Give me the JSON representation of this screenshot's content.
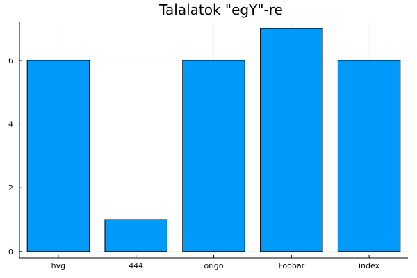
{
  "chart_data": {
    "type": "bar",
    "title": "Talalatok \"egY\"-re",
    "categories": [
      "hvg",
      "444",
      "origo",
      "Foobar",
      "index"
    ],
    "values": [
      6,
      1,
      6,
      7,
      6
    ],
    "xlabel": "",
    "ylabel": "",
    "ylim": [
      -0.2,
      7.2
    ],
    "yticks": [
      0,
      2,
      4,
      6
    ],
    "grid": true,
    "legend": "none",
    "bar_color": "#009AFA"
  }
}
